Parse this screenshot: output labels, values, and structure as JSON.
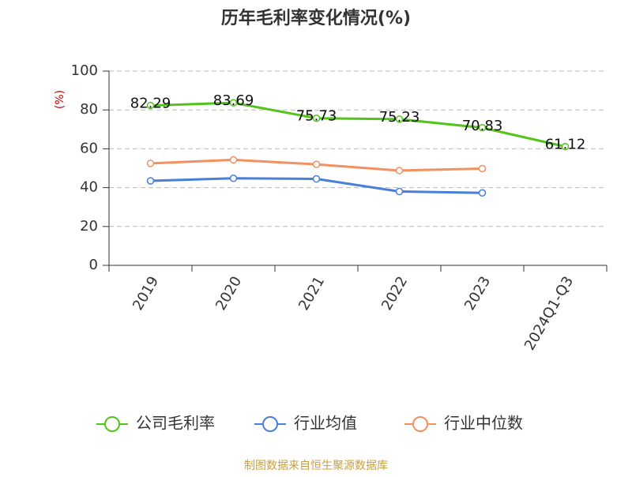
{
  "chart_data": {
    "type": "line",
    "title": "历年毛利率变化情况(%)",
    "y_label": "(%)",
    "categories": [
      "2019",
      "2020",
      "2021",
      "2022",
      "2023",
      "2024Q1-Q3"
    ],
    "series": [
      {
        "name": "公司毛利率",
        "color": "#52c41a",
        "values": [
          82.29,
          83.69,
          75.73,
          75.23,
          70.83,
          61.12
        ],
        "show_labels": true
      },
      {
        "name": "行业均值",
        "color": "#4a7fd8",
        "values": [
          43.5,
          44.8,
          44.5,
          38,
          37.3,
          null
        ]
      },
      {
        "name": "行业中位数",
        "color": "#f39060",
        "values": [
          52.5,
          54.3,
          52,
          48.8,
          49.8,
          null
        ]
      }
    ],
    "ylim": [
      0,
      100
    ],
    "yticks": [
      0,
      20,
      40,
      60,
      80,
      100
    ],
    "grid": true,
    "source": "制图数据来自恒生聚源数据库"
  }
}
